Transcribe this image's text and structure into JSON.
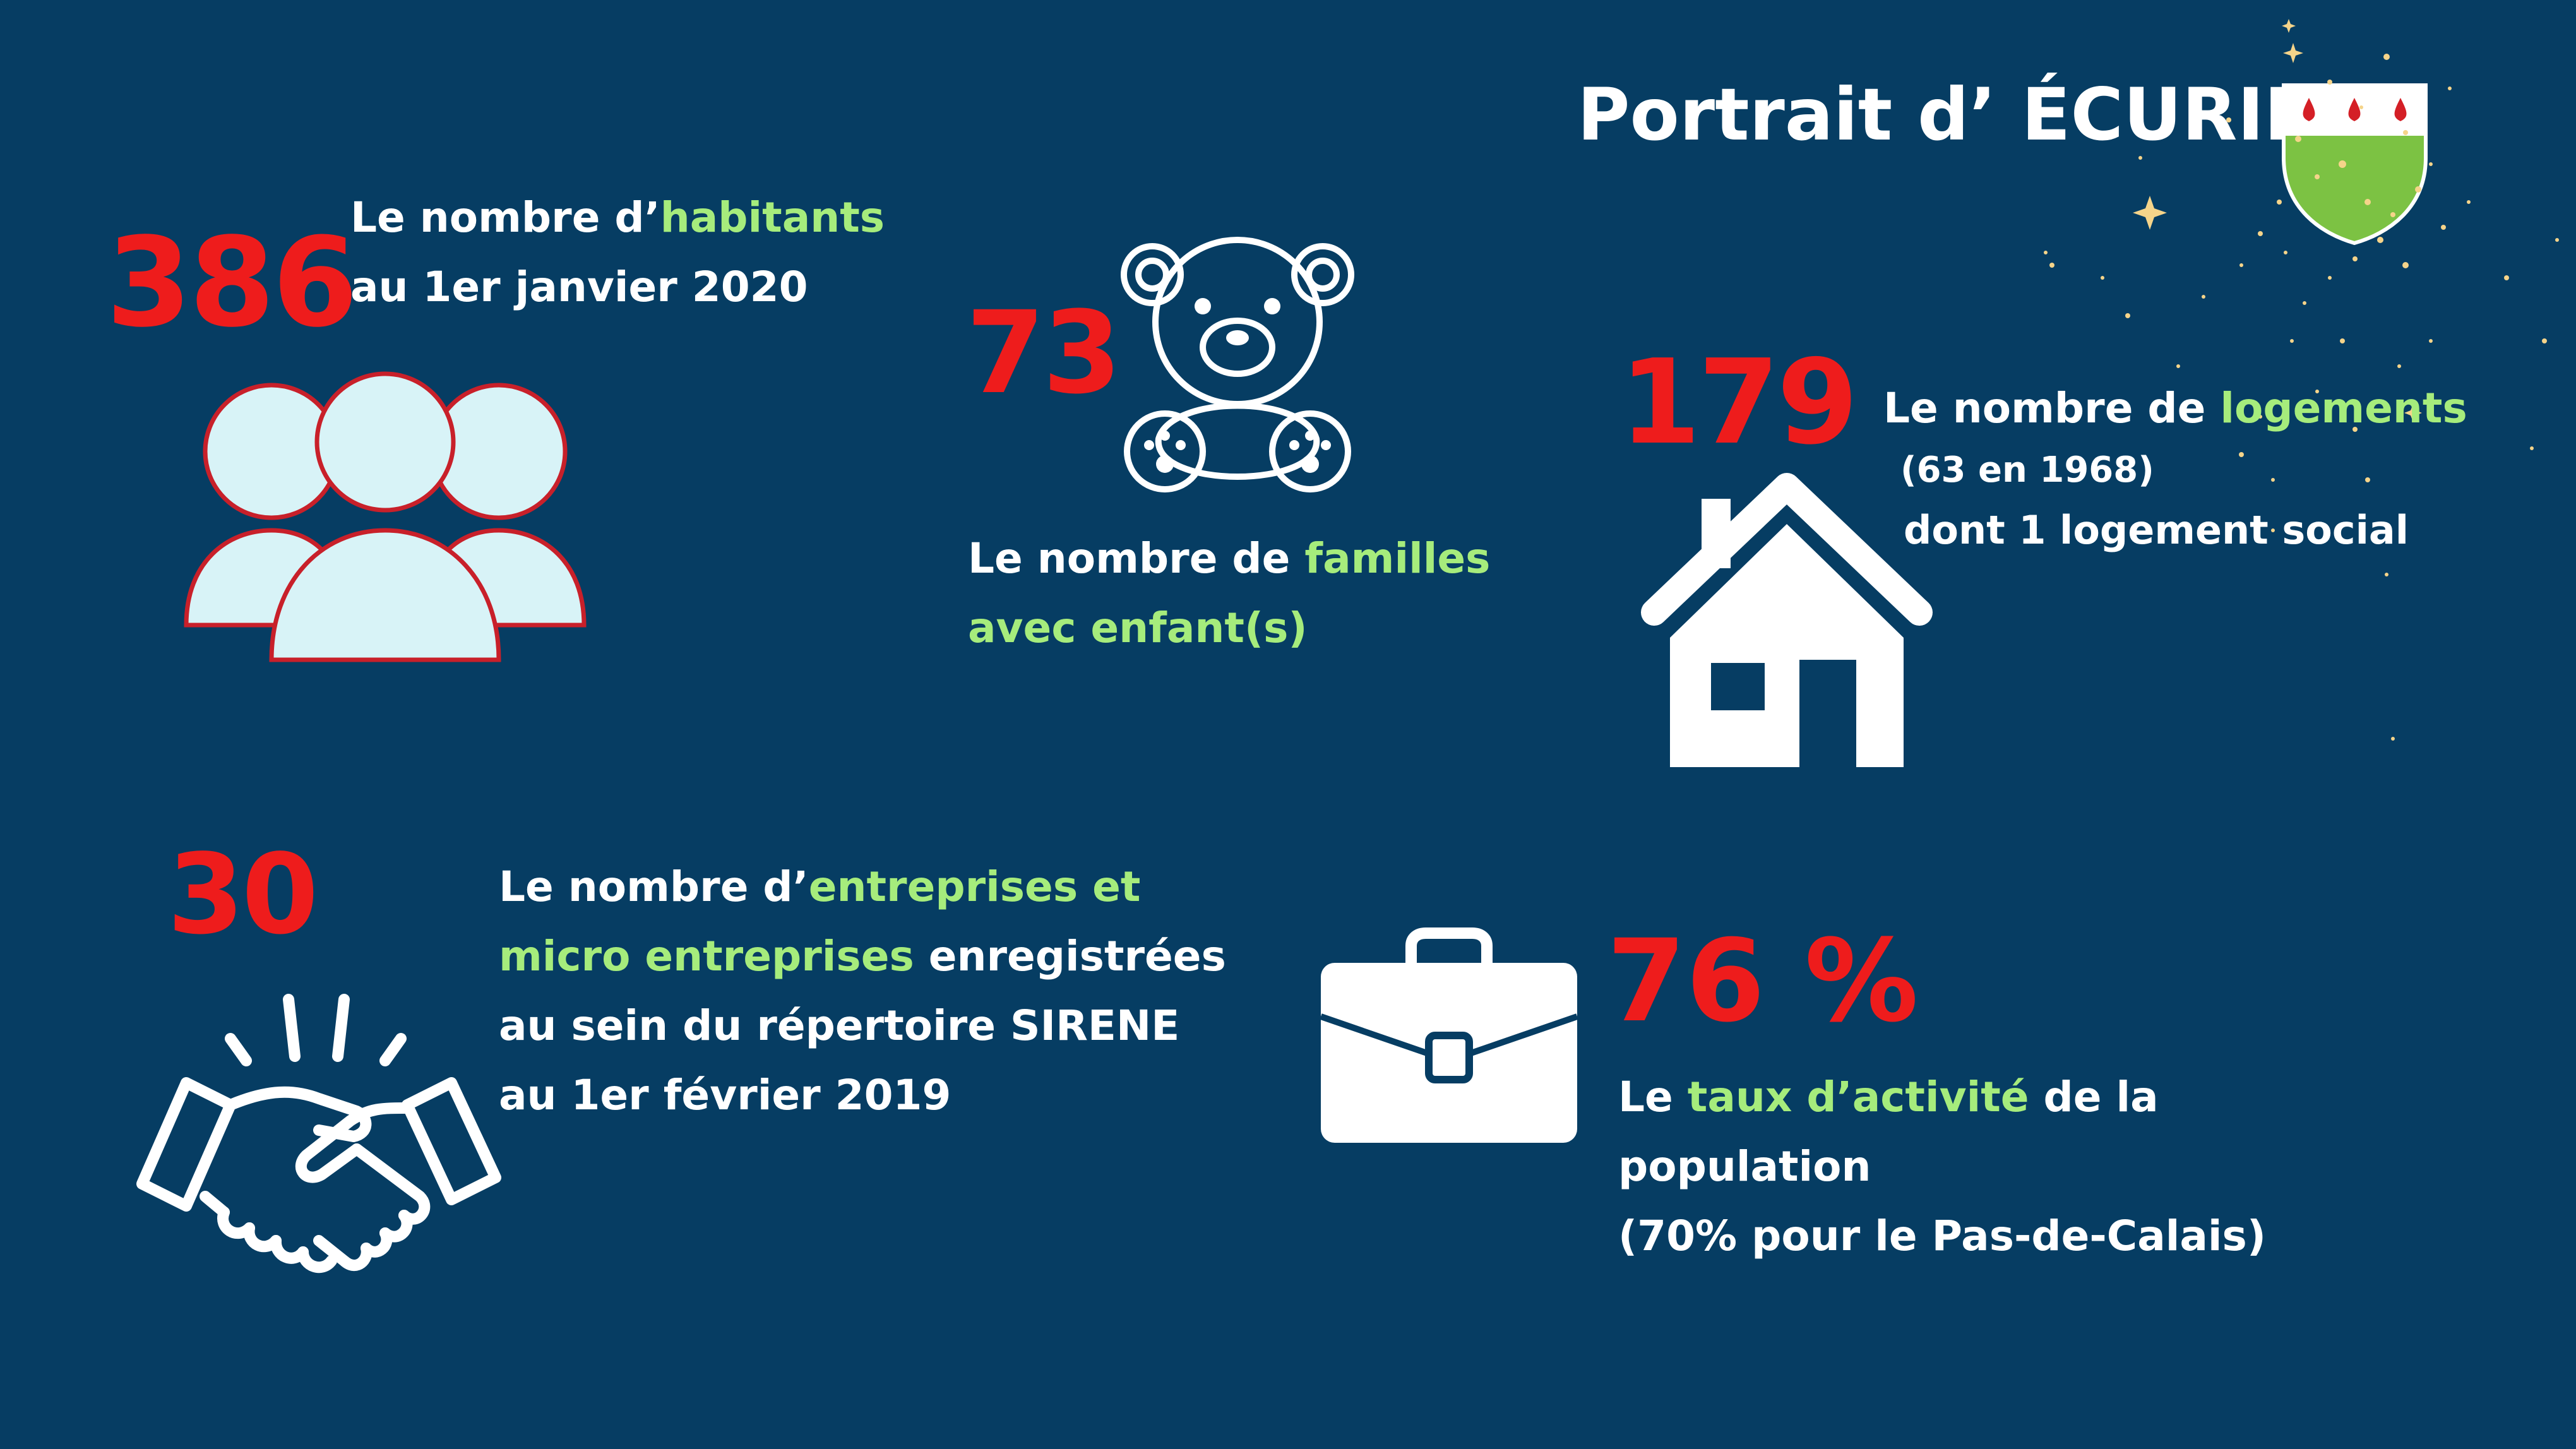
{
  "title": "Portrait d’ ÉCURIE",
  "colors": {
    "background": "#063d63",
    "number": "#ee1c1c",
    "highlight": "#a6ec7c",
    "text": "#ffffff",
    "people_fill": "#d8f3f7",
    "people_stroke": "#c8202a",
    "shield_green": "#7cc243",
    "drop_red": "#d41f26",
    "sparkle": "#f5d48a"
  },
  "habitants": {
    "value": "386",
    "line1_a": "Le nombre d’",
    "line1_hl": "habitants",
    "line2": "au 1er janvier 2020",
    "icon": "people-group-icon"
  },
  "familles": {
    "value": "73",
    "line1_a": "Le nombre de ",
    "line1_hl": "familles",
    "line2_hl": "avec enfant(s)",
    "icon": "teddy-bear-icon"
  },
  "logements": {
    "value": "179",
    "line1_a": "Le nombre de ",
    "line1_hl": "logements",
    "line2": "(63 en 1968)",
    "line3": "dont 1 logement social",
    "icon": "house-icon"
  },
  "entreprises": {
    "value": "30",
    "line1_a": "Le nombre d’",
    "line1_hl": "entreprises et",
    "line2_hl": "micro entreprises",
    "line2_b": " enregistrées",
    "line3": "au sein du répertoire SIRENE",
    "line4": "au 1er février 2019",
    "icon": "handshake-icon"
  },
  "activite": {
    "value": "76 %",
    "line1_a": "Le ",
    "line1_hl": "taux d’activité",
    "line1_b": " de la",
    "line2": "population",
    "line3": "(70% pour le Pas-de-Calais)",
    "icon": "briefcase-icon"
  }
}
